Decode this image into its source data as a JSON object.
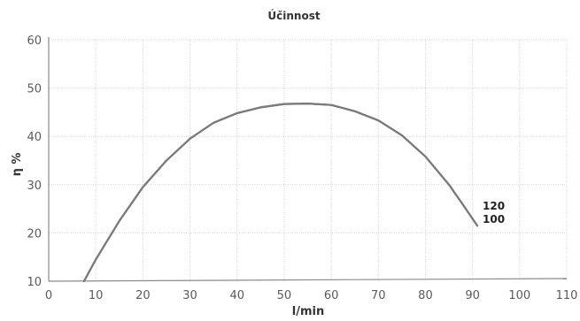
{
  "chart_data": {
    "type": "line",
    "title": "Účinnost",
    "xlabel": "l/min",
    "ylabel": "η %",
    "xlim": [
      0,
      110
    ],
    "ylim": [
      10,
      60
    ],
    "x_ticks": [
      0,
      10,
      20,
      30,
      40,
      50,
      60,
      70,
      80,
      90,
      100,
      110
    ],
    "y_ticks": [
      10,
      20,
      30,
      40,
      50,
      60
    ],
    "grid": true,
    "series": [
      {
        "name": "120",
        "x": [
          7.5,
          10,
          15,
          20,
          25,
          30,
          35,
          40,
          45,
          50,
          55,
          60,
          65,
          70,
          75,
          80,
          85,
          88,
          91
        ],
        "values": [
          10,
          14.5,
          22.5,
          29.5,
          35,
          39.5,
          42.8,
          44.8,
          46.0,
          46.7,
          46.8,
          46.5,
          45.2,
          43.3,
          40.2,
          35.8,
          30.0,
          25.8,
          21.5
        ]
      },
      {
        "name": "100",
        "x": [
          7.5,
          10,
          15,
          20,
          25,
          30,
          35,
          40,
          45,
          50,
          55,
          60,
          65,
          70,
          75,
          80,
          85,
          88,
          91
        ],
        "values": [
          10,
          14.5,
          22.5,
          29.5,
          35,
          39.5,
          42.8,
          44.8,
          46.0,
          46.7,
          46.8,
          46.5,
          45.2,
          43.3,
          40.2,
          35.8,
          30.0,
          25.8,
          21.5
        ]
      }
    ]
  },
  "colors": {
    "curve": "#7a7a7a",
    "grid": "#cfcfcf",
    "frame": "#8a8a8a"
  }
}
